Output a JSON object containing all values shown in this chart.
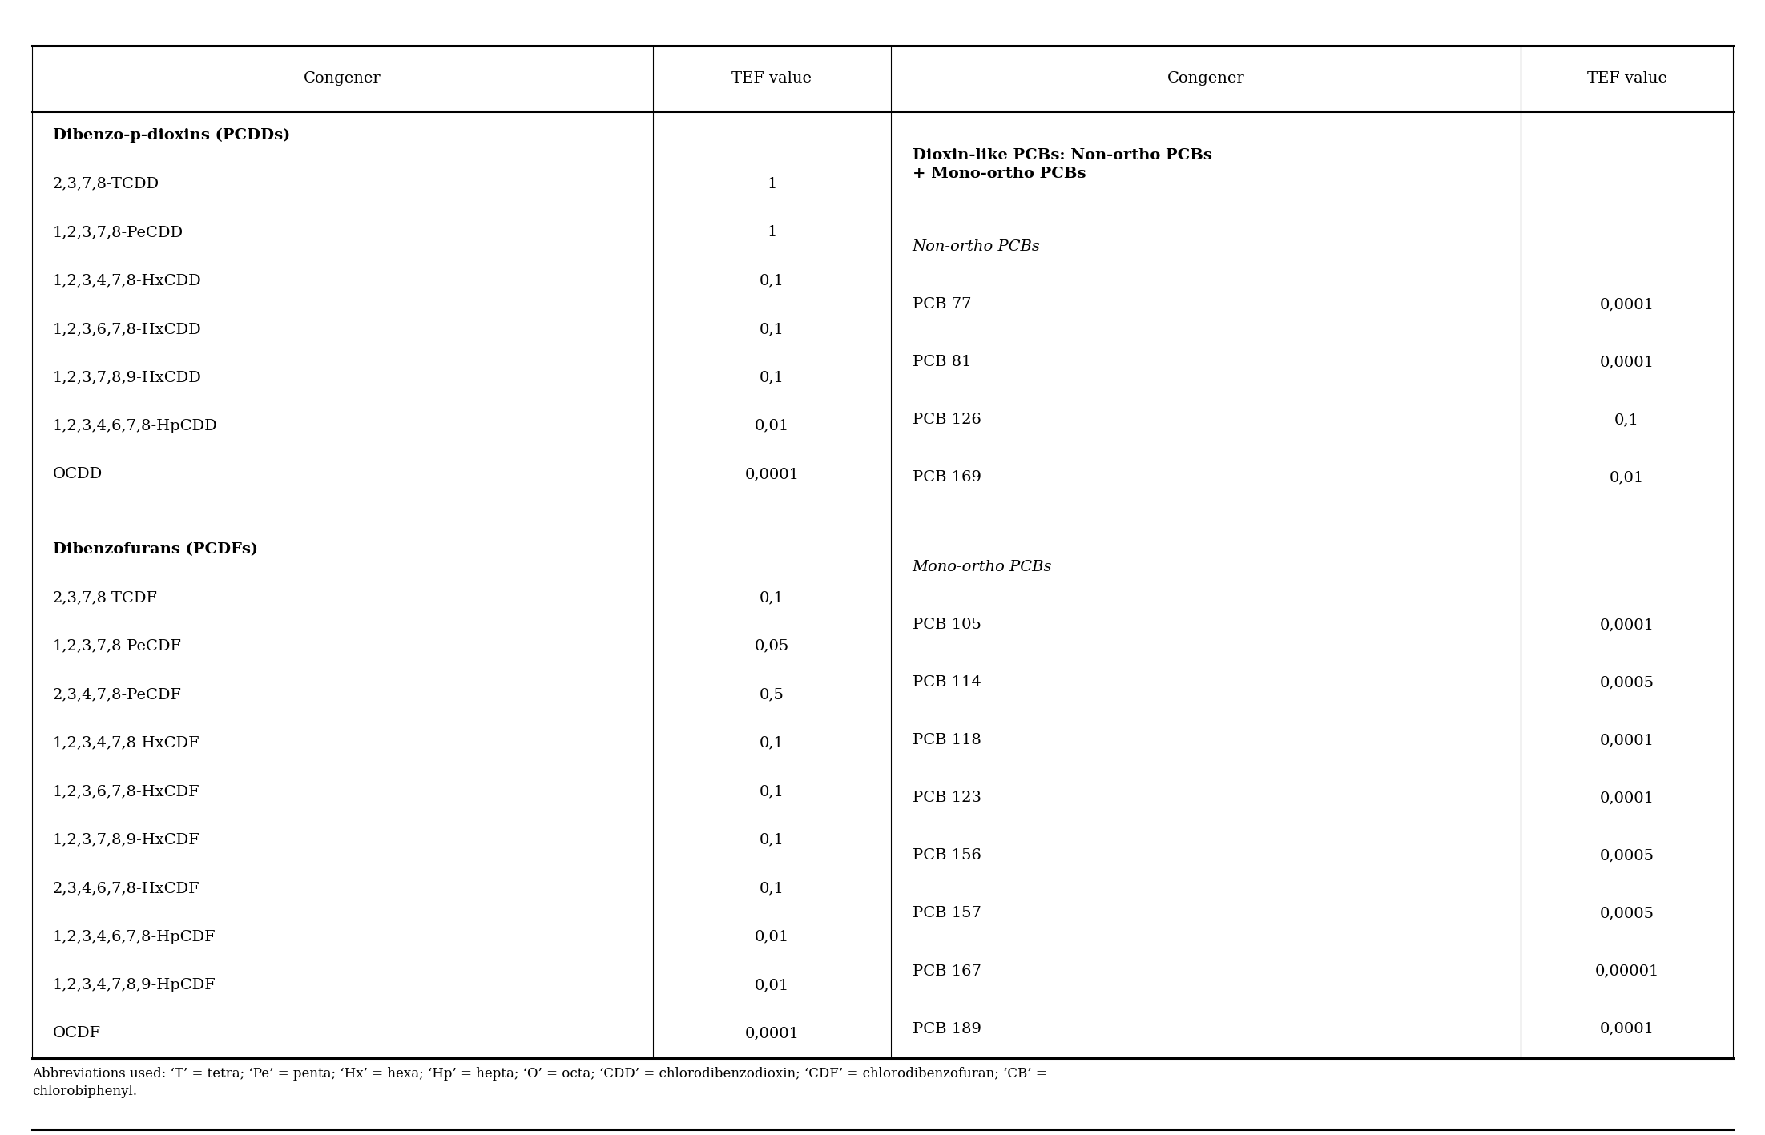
{
  "figsize": [
    22.03,
    14.17
  ],
  "dpi": 100,
  "bg_color": "#ffffff",
  "border_color": "#000000",
  "font_family": "DejaVu Serif",
  "header_fontsize": 14,
  "body_fontsize": 14,
  "footnote_fontsize": 12,
  "header_row": [
    "Congener",
    "TEF value",
    "Congener",
    "TEF value"
  ],
  "col_dividers_rel": [
    0.0,
    0.365,
    0.505,
    0.875,
    1.0
  ],
  "left_rows": [
    {
      "text": "Dibenzo-p-dioxins (PCDDs)",
      "bold": true,
      "tef": "",
      "spacer": false
    },
    {
      "text": "2,3,7,8-TCDD",
      "bold": false,
      "tef": "1",
      "spacer": false
    },
    {
      "text": "1,2,3,7,8-PeCDD",
      "bold": false,
      "tef": "1",
      "spacer": false
    },
    {
      "text": "1,2,3,4,7,8-HxCDD",
      "bold": false,
      "tef": "0,1",
      "spacer": false
    },
    {
      "text": "1,2,3,6,7,8-HxCDD",
      "bold": false,
      "tef": "0,1",
      "spacer": false
    },
    {
      "text": "1,2,3,7,8,9-HxCDD",
      "bold": false,
      "tef": "0,1",
      "spacer": false
    },
    {
      "text": "1,2,3,4,6,7,8-HpCDD",
      "bold": false,
      "tef": "0,01",
      "spacer": false
    },
    {
      "text": "OCDD",
      "bold": false,
      "tef": "0,0001",
      "spacer": false
    },
    {
      "text": "",
      "bold": false,
      "tef": "",
      "spacer": true
    },
    {
      "text": "Dibenzofurans (PCDFs)",
      "bold": true,
      "tef": "",
      "spacer": false
    },
    {
      "text": "2,3,7,8-TCDF",
      "bold": false,
      "tef": "0,1",
      "spacer": false
    },
    {
      "text": "1,2,3,7,8-PeCDF",
      "bold": false,
      "tef": "0,05",
      "spacer": false
    },
    {
      "text": "2,3,4,7,8-PeCDF",
      "bold": false,
      "tef": "0,5",
      "spacer": false
    },
    {
      "text": "1,2,3,4,7,8-HxCDF",
      "bold": false,
      "tef": "0,1",
      "spacer": false
    },
    {
      "text": "1,2,3,6,7,8-HxCDF",
      "bold": false,
      "tef": "0,1",
      "spacer": false
    },
    {
      "text": "1,2,3,7,8,9-HxCDF",
      "bold": false,
      "tef": "0,1",
      "spacer": false
    },
    {
      "text": "2,3,4,6,7,8-HxCDF",
      "bold": false,
      "tef": "0,1",
      "spacer": false
    },
    {
      "text": "1,2,3,4,6,7,8-HpCDF",
      "bold": false,
      "tef": "0,01",
      "spacer": false
    },
    {
      "text": "1,2,3,4,7,8,9-HpCDF",
      "bold": false,
      "tef": "0,01",
      "spacer": false
    },
    {
      "text": "OCDF",
      "bold": false,
      "tef": "0,0001",
      "spacer": false
    }
  ],
  "right_rows": [
    {
      "text": "Dioxin-like PCBs: Non-ortho PCBs\n+ Mono-ortho PCBs",
      "bold": true,
      "italic": false,
      "tef": "",
      "multiline": true
    },
    {
      "text": "Non-ortho PCBs",
      "bold": false,
      "italic": true,
      "tef": "",
      "multiline": false
    },
    {
      "text": "PCB 77",
      "bold": false,
      "italic": false,
      "tef": "0,0001",
      "multiline": false
    },
    {
      "text": "PCB 81",
      "bold": false,
      "italic": false,
      "tef": "0,0001",
      "multiline": false
    },
    {
      "text": "PCB 126",
      "bold": false,
      "italic": false,
      "tef": "0,1",
      "multiline": false
    },
    {
      "text": "PCB 169",
      "bold": false,
      "italic": false,
      "tef": "0,01",
      "multiline": false
    },
    {
      "text": "",
      "bold": false,
      "italic": false,
      "tef": "",
      "multiline": false
    },
    {
      "text": "Mono-ortho PCBs",
      "bold": false,
      "italic": true,
      "tef": "",
      "multiline": false
    },
    {
      "text": "PCB 105",
      "bold": false,
      "italic": false,
      "tef": "0,0001",
      "multiline": false
    },
    {
      "text": "PCB 114",
      "bold": false,
      "italic": false,
      "tef": "0,0005",
      "multiline": false
    },
    {
      "text": "PCB 118",
      "bold": false,
      "italic": false,
      "tef": "0,0001",
      "multiline": false
    },
    {
      "text": "PCB 123",
      "bold": false,
      "italic": false,
      "tef": "0,0001",
      "multiline": false
    },
    {
      "text": "PCB 156",
      "bold": false,
      "italic": false,
      "tef": "0,0005",
      "multiline": false
    },
    {
      "text": "PCB 157",
      "bold": false,
      "italic": false,
      "tef": "0,0005",
      "multiline": false
    },
    {
      "text": "PCB 167",
      "bold": false,
      "italic": false,
      "tef": "0,00001",
      "multiline": false
    },
    {
      "text": "PCB 189",
      "bold": false,
      "italic": false,
      "tef": "0,0001",
      "multiline": false
    }
  ],
  "footnote": "Abbreviations used: ‘T’ = tetra; ‘Pe’ = penta; ‘Hx’ = hexa; ‘Hp’ = hepta; ‘O’ = octa; ‘CDD’ = chlorodibenzodioxin; ‘CDF’ = chlorodibenzofuran; ‘CB’ =\nchlorobiphenyl."
}
